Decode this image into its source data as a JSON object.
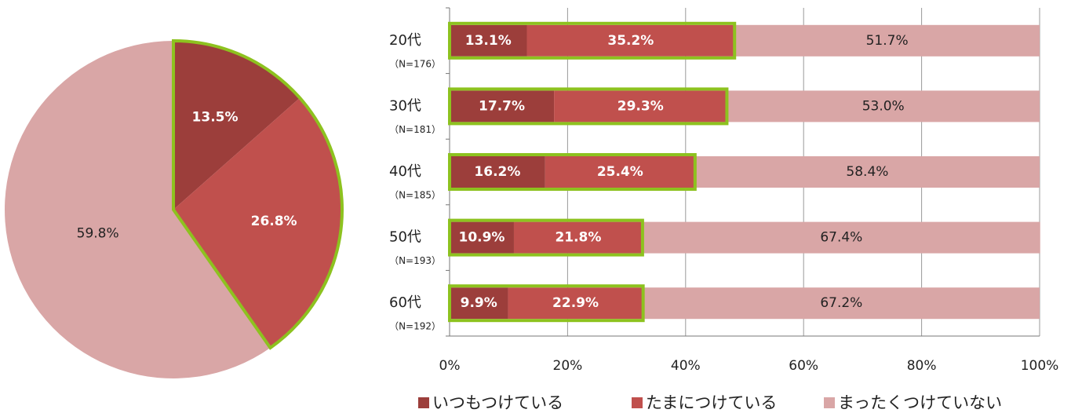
{
  "chart_data": [
    {
      "type": "pie",
      "categories": [
        "いつもつけている",
        "たまにつけている",
        "まったくつけていない"
      ],
      "values": [
        13.5,
        26.8,
        59.8
      ],
      "value_labels": [
        "13.5%",
        "26.8%",
        "59.8%"
      ],
      "colors": [
        "#9c3e3b",
        "#c0504d",
        "#d9a6a6"
      ]
    },
    {
      "type": "stacked_barh",
      "categories": [
        "20代",
        "30代",
        "40代",
        "50代",
        "60代"
      ],
      "sample_sizes": [
        "（N=176）",
        "（N=181）",
        "（N=185）",
        "（N=193）",
        "（N=192）"
      ],
      "series": [
        {
          "name": "いつもつけている",
          "color": "#9c3e3b",
          "values": [
            13.1,
            17.7,
            16.2,
            10.9,
            9.9
          ],
          "value_labels": [
            "13.1%",
            "17.7%",
            "16.2%",
            "10.9%",
            "9.9%"
          ]
        },
        {
          "name": "たまにつけている",
          "color": "#c0504d",
          "values": [
            35.2,
            29.3,
            25.4,
            21.8,
            22.9
          ],
          "value_labels": [
            "35.2%",
            "29.3%",
            "25.4%",
            "21.8%",
            "22.9%"
          ]
        },
        {
          "name": "まったくつけていない",
          "color": "#d9a6a6",
          "values": [
            51.7,
            53.0,
            58.4,
            67.4,
            67.2
          ],
          "value_labels": [
            "51.7%",
            "53.0%",
            "58.4%",
            "67.4%",
            "67.2%"
          ]
        }
      ],
      "xlim": [
        0,
        100
      ],
      "xticks": [
        {
          "value": 0,
          "label": "0%"
        },
        {
          "value": 20,
          "label": "20%"
        },
        {
          "value": 40,
          "label": "40%"
        },
        {
          "value": 60,
          "label": "60%"
        },
        {
          "value": 80,
          "label": "80%"
        },
        {
          "value": 100,
          "label": "100%"
        }
      ],
      "grid": true,
      "legend": "bottom"
    }
  ]
}
